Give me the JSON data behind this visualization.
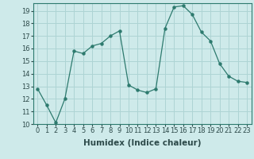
{
  "x": [
    0,
    1,
    2,
    3,
    4,
    5,
    6,
    7,
    8,
    9,
    10,
    11,
    12,
    13,
    14,
    15,
    16,
    17,
    18,
    19,
    20,
    21,
    22,
    23
  ],
  "y": [
    12.8,
    11.5,
    10.1,
    12.0,
    15.8,
    15.6,
    16.2,
    16.4,
    17.0,
    17.4,
    13.1,
    12.7,
    12.5,
    12.8,
    17.6,
    19.3,
    19.4,
    18.7,
    17.3,
    16.6,
    14.8,
    13.8,
    13.4,
    13.3
  ],
  "line_color": "#2d7a6e",
  "bg_color": "#ceeaea",
  "grid_color": "#aed4d4",
  "xlabel": "Humidex (Indice chaleur)",
  "ylim": [
    10,
    19.6
  ],
  "xlim": [
    -0.5,
    23.5
  ],
  "yticks": [
    10,
    11,
    12,
    13,
    14,
    15,
    16,
    17,
    18,
    19
  ],
  "xticks": [
    0,
    1,
    2,
    3,
    4,
    5,
    6,
    7,
    8,
    9,
    10,
    11,
    12,
    13,
    14,
    15,
    16,
    17,
    18,
    19,
    20,
    21,
    22,
    23
  ],
  "tick_fontsize": 6.0,
  "xlabel_fontsize": 7.5,
  "spine_color": "#2d7a6e",
  "tick_color": "#2d4a4a"
}
